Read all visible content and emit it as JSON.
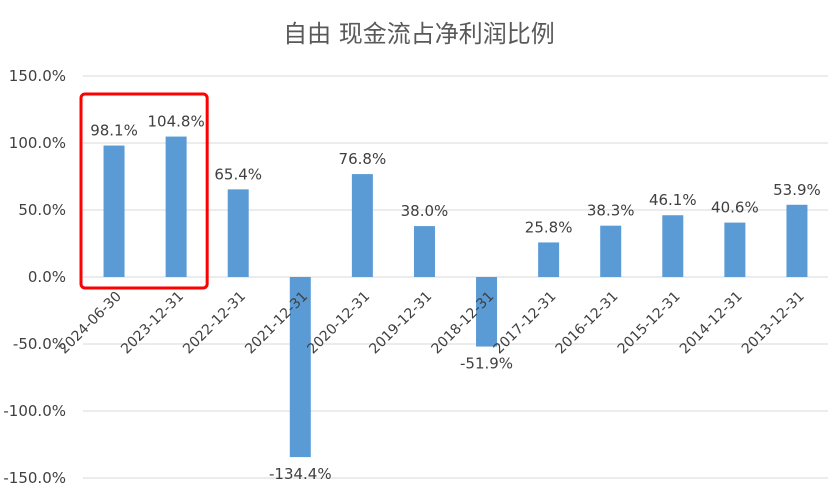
{
  "chart_data": {
    "type": "bar",
    "title": "自由 现金流占净利润比例",
    "categories": [
      "2024-06-30",
      "2023-12-31",
      "2022-12-31",
      "2021-12-31",
      "2020-12-31",
      "2019-12-31",
      "2018-12-31",
      "2017-12-31",
      "2016-12-31",
      "2015-12-31",
      "2014-12-31",
      "2013-12-31"
    ],
    "values": [
      98.1,
      104.8,
      65.4,
      -134.4,
      76.8,
      38.0,
      -51.9,
      25.8,
      38.3,
      46.1,
      40.6,
      53.9
    ],
    "value_labels": [
      "98.1%",
      "104.8%",
      "65.4%",
      "-134.4%",
      "76.8%",
      "38.0%",
      "-51.9%",
      "25.8%",
      "38.3%",
      "46.1%",
      "40.6%",
      "53.9%"
    ],
    "y_ticks": [
      150,
      100,
      50,
      0,
      -50,
      -100,
      -150
    ],
    "y_tick_labels": [
      "150.0%",
      "100.0%",
      "50.0%",
      "0.0%",
      "-50.0%",
      "-100.0%",
      "-150.0%"
    ],
    "ylim": [
      -150,
      150
    ],
    "xlabel": "",
    "ylabel": "",
    "grid": true,
    "bar_color": "#5B9BD5",
    "highlight": {
      "categories": [
        "2024-06-30",
        "2023-12-31"
      ],
      "color": "#FF0000"
    }
  }
}
